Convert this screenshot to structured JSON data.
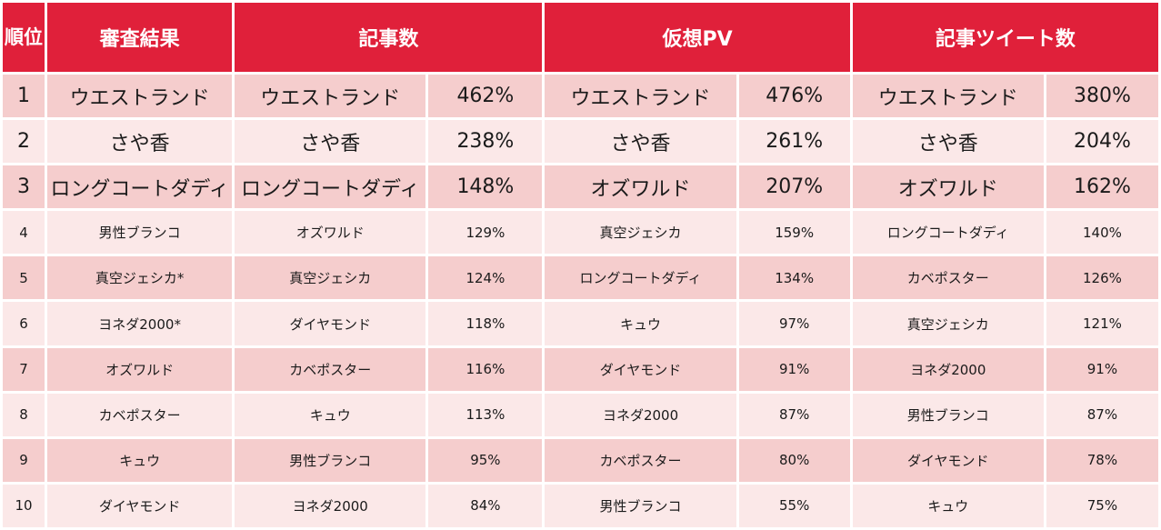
{
  "header": {
    "rank": "順位",
    "judge": "審査結果",
    "articles": "記事数",
    "pv": "仮想PV",
    "tweets": "記事ツイート数"
  },
  "rows": [
    {
      "rank": "1",
      "judge": "ウエストランド",
      "articles_name": "ウエストランド",
      "articles_pct": "462%",
      "pv_name": "ウエストランド",
      "pv_pct": "476%",
      "tweets_name": "ウエストランド",
      "tweets_pct": "380%"
    },
    {
      "rank": "2",
      "judge": "さや香",
      "articles_name": "さや香",
      "articles_pct": "238%",
      "pv_name": "さや香",
      "pv_pct": "261%",
      "tweets_name": "さや香",
      "tweets_pct": "204%"
    },
    {
      "rank": "3",
      "judge": "ロングコートダディ",
      "articles_name": "ロングコートダディ",
      "articles_pct": "148%",
      "pv_name": "オズワルド",
      "pv_pct": "207%",
      "tweets_name": "オズワルド",
      "tweets_pct": "162%"
    },
    {
      "rank": "4",
      "judge": "男性ブランコ",
      "articles_name": "オズワルド",
      "articles_pct": "129%",
      "pv_name": "真空ジェシカ",
      "pv_pct": "159%",
      "tweets_name": "ロングコートダディ",
      "tweets_pct": "140%"
    },
    {
      "rank": "5",
      "judge": "真空ジェシカ*",
      "articles_name": "真空ジェシカ",
      "articles_pct": "124%",
      "pv_name": "ロングコートダディ",
      "pv_pct": "134%",
      "tweets_name": "カベポスター",
      "tweets_pct": "126%"
    },
    {
      "rank": "6",
      "judge": "ヨネダ2000*",
      "articles_name": "ダイヤモンド",
      "articles_pct": "118%",
      "pv_name": "キュウ",
      "pv_pct": "97%",
      "tweets_name": "真空ジェシカ",
      "tweets_pct": "121%"
    },
    {
      "rank": "7",
      "judge": "オズワルド",
      "articles_name": "カベポスター",
      "articles_pct": "116%",
      "pv_name": "ダイヤモンド",
      "pv_pct": "91%",
      "tweets_name": "ヨネダ2000",
      "tweets_pct": "91%"
    },
    {
      "rank": "8",
      "judge": "カベポスター",
      "articles_name": "キュウ",
      "articles_pct": "113%",
      "pv_name": "ヨネダ2000",
      "pv_pct": "87%",
      "tweets_name": "男性ブランコ",
      "tweets_pct": "87%"
    },
    {
      "rank": "9",
      "judge": "キュウ",
      "articles_name": "男性ブランコ",
      "articles_pct": "95%",
      "pv_name": "カベポスター",
      "pv_pct": "80%",
      "tweets_name": "ダイヤモンド",
      "tweets_pct": "78%"
    },
    {
      "rank": "10",
      "judge": "ダイヤモンド",
      "articles_name": "ヨネダ2000",
      "articles_pct": "84%",
      "pv_name": "男性ブランコ",
      "pv_pct": "55%",
      "tweets_name": "キュウ",
      "tweets_pct": "75%"
    }
  ],
  "colors": {
    "header_bg": "#e0203a",
    "row_odd": "#f5cdcd",
    "row_even": "#fbe8e8"
  }
}
